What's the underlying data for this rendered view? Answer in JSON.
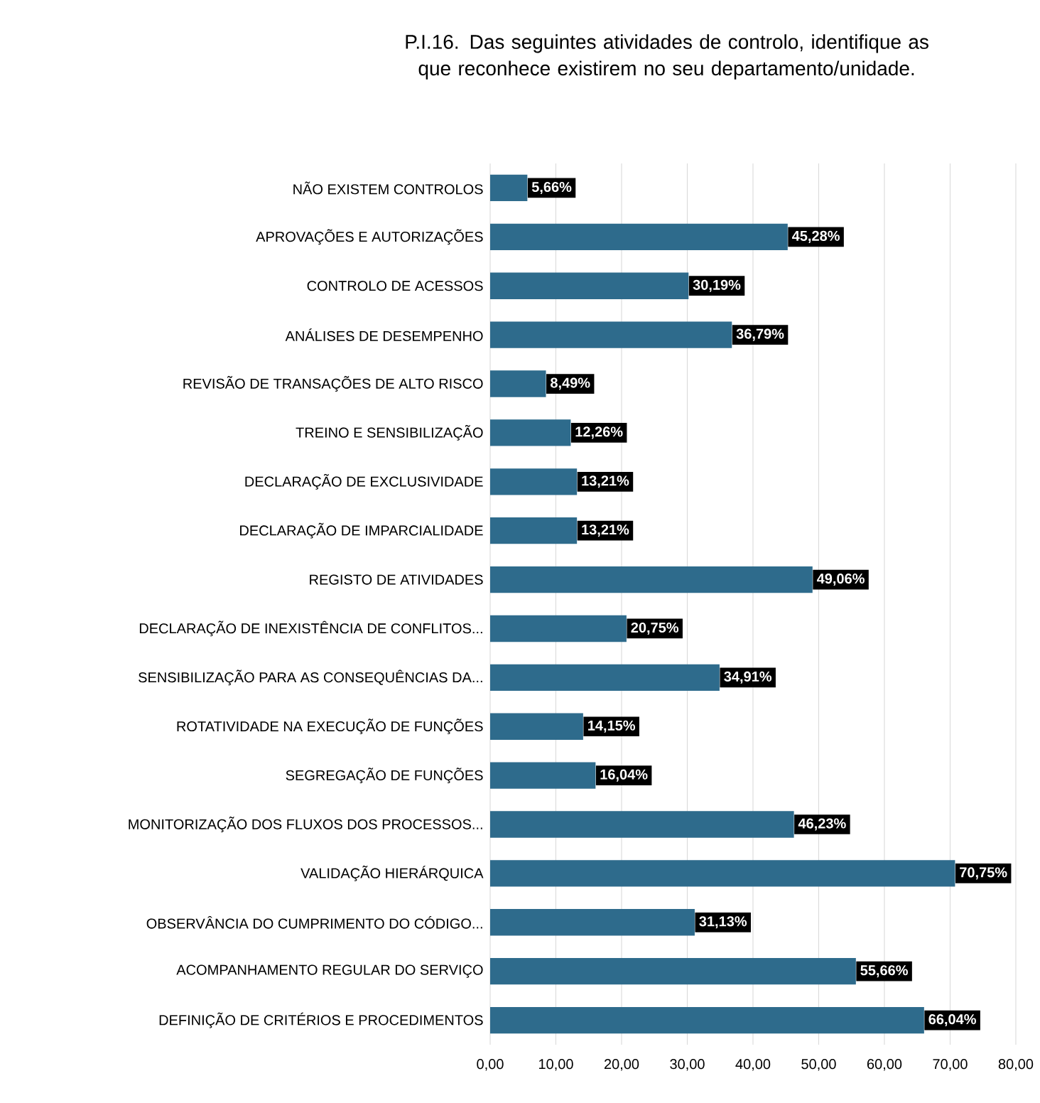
{
  "chart_data": {
    "type": "bar",
    "orientation": "horizontal",
    "title": "P.I.16.    Das seguintes atividades de controlo, identifique as que reconhece existirem no seu departamento/unidade.",
    "categories": [
      "NÃO EXISTEM CONTROLOS",
      "APROVAÇÕES E AUTORIZAÇÕES",
      "CONTROLO DE ACESSOS",
      "ANÁLISES DE DESEMPENHO",
      "REVISÃO DE TRANSAÇÕES DE ALTO RISCO",
      "TREINO E SENSIBILIZAÇÃO",
      "DECLARAÇÃO DE EXCLUSIVIDADE",
      "DECLARAÇÃO DE IMPARCIALIDADE",
      "REGISTO DE ATIVIDADES",
      "DECLARAÇÃO DE INEXISTÊNCIA DE CONFLITOS...",
      "SENSIBILIZAÇÃO PARA AS CONSEQUÊNCIAS DA...",
      "ROTATIVIDADE NA EXECUÇÃO DE FUNÇÕES",
      "SEGREGAÇÃO DE FUNÇÕES",
      "MONITORIZAÇÃO DOS FLUXOS DOS PROCESSOS...",
      "VALIDAÇÃO HIERÁRQUICA",
      "OBSERVÂNCIA DO CUMPRIMENTO DO CÓDIGO...",
      "ACOMPANHAMENTO REGULAR DO SERVIÇO",
      "DEFINIÇÃO DE CRITÉRIOS E PROCEDIMENTOS"
    ],
    "values": [
      5.66,
      45.28,
      30.19,
      36.79,
      8.49,
      12.26,
      13.21,
      13.21,
      49.06,
      20.75,
      34.91,
      14.15,
      16.04,
      46.23,
      70.75,
      31.13,
      55.66,
      66.04
    ],
    "value_labels": [
      "5,66%",
      "45,28%",
      "30,19%",
      "36,79%",
      "8,49%",
      "12,26%",
      "13,21%",
      "13,21%",
      "49,06%",
      "20,75%",
      "34,91%",
      "14,15%",
      "16,04%",
      "46,23%",
      "70,75%",
      "31,13%",
      "55,66%",
      "66,04%"
    ],
    "color": "#2e6b8c",
    "xlim": [
      0,
      80
    ],
    "xticks": [
      {
        "value": 0,
        "label": "0,00"
      },
      {
        "value": 10,
        "label": "10,00"
      },
      {
        "value": 20,
        "label": "20,00"
      },
      {
        "value": 30,
        "label": "30,00"
      },
      {
        "value": 40,
        "label": "40,00"
      },
      {
        "value": 50,
        "label": "50,00"
      },
      {
        "value": 60,
        "label": "60,00"
      },
      {
        "value": 70,
        "label": "70,00"
      },
      {
        "value": 80,
        "label": "80,00"
      }
    ],
    "grid": "x"
  }
}
